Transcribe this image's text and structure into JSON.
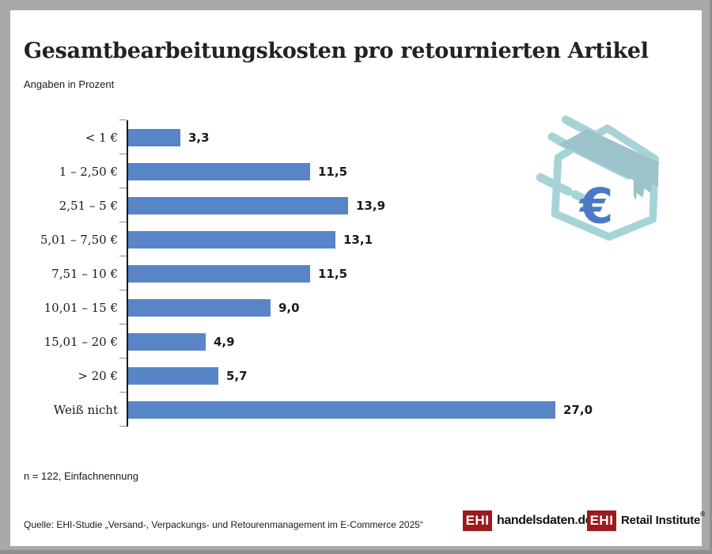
{
  "header": {
    "title": "Gesamtbearbeitungskosten pro retournierten Artikel",
    "subtitle": "Angaben in Prozent"
  },
  "chart_data": {
    "type": "bar",
    "orientation": "horizontal",
    "title": "Gesamtbearbeitungskosten pro retournierten Artikel",
    "subtitle": "Angaben in Prozent",
    "unit": "percent",
    "categories": [
      "< 1 €",
      "1 – 2,50 €",
      "2,51 – 5 €",
      "5,01 – 7,50 €",
      "7,51 – 10 €",
      "10,01 – 15 €",
      "15,01 – 20 €",
      "> 20 €",
      "Weiß nicht"
    ],
    "values": [
      3.3,
      11.5,
      13.9,
      13.1,
      11.5,
      9.0,
      4.9,
      5.7,
      27.0
    ],
    "value_labels": [
      "3,3",
      "11,5",
      "13,9",
      "13,1",
      "11,5",
      "9,0",
      "4,9",
      "5,7",
      "27,0"
    ],
    "xlabel": "",
    "ylabel": "",
    "xlim": [
      0,
      27.5
    ],
    "grid": false,
    "legend": false,
    "bar_color": "#5885C6"
  },
  "notes": {
    "sample": "n = 122, Einfachnennung",
    "source": "Quelle: EHI-Studie „Versand-, Verpackungs- und Retourenmanagement im E-Commerce 2025“"
  },
  "icon": {
    "name": "flying-parcel-euro",
    "euro_symbol": "€",
    "outline_color": "#A6D4D6",
    "band_color": "#9CC2CA",
    "euro_color": "#4A7AC5"
  },
  "logos": {
    "handelsdaten": {
      "badge": "EHI",
      "name": "handelsdaten",
      "dot": ".",
      "tld": "de"
    },
    "retail_institute": {
      "badge": "EHI",
      "name": "Retail Institute",
      "registered": "®"
    }
  },
  "colors": {
    "bar_blue": "#5885C6",
    "logo_red": "#9C1B1E",
    "frame_gray": "#A9A9A9",
    "axis_black": "#1A1A1A",
    "tick_gray": "#8A8A8A"
  }
}
